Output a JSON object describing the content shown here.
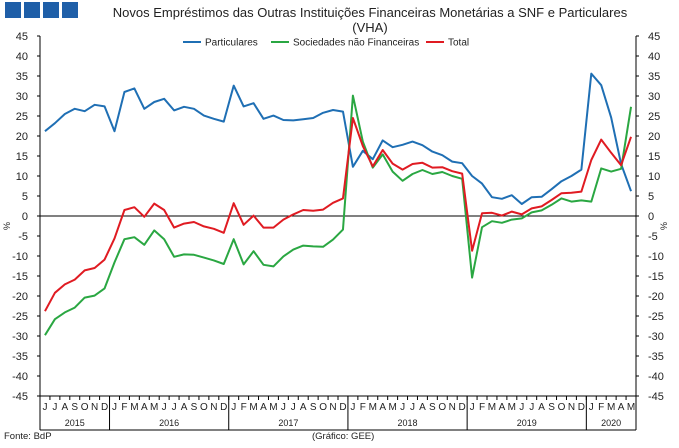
{
  "header": {
    "title": "Novos Empréstimos das Outras Instituições Financeiras Monetárias a SNF e Particulares",
    "subtitle": "(VHA)"
  },
  "footer": {
    "source": "Fonte: BdP",
    "credit": "(Gráfico: GEE)"
  },
  "chart_data": {
    "type": "line",
    "title": "Novos Empréstimos das Outras Instituições Financeiras Monetárias a SNF e Particulares",
    "subtitle": "(VHA)",
    "ylabel": "%",
    "ylabel_right": "%",
    "ylim": [
      -45,
      45
    ],
    "yticks": [
      -45,
      -40,
      -35,
      -30,
      -25,
      -20,
      -15,
      -10,
      -5,
      0,
      5,
      10,
      15,
      20,
      25,
      30,
      35,
      40,
      45
    ],
    "grid": false,
    "legend_position": "top",
    "month_labels": [
      "J",
      "J",
      "A",
      "S",
      "O",
      "N",
      "D",
      "J",
      "F",
      "M",
      "A",
      "M",
      "J",
      "J",
      "A",
      "S",
      "O",
      "N",
      "D",
      "J",
      "F",
      "M",
      "A",
      "M",
      "J",
      "J",
      "A",
      "S",
      "O",
      "N",
      "D",
      "J",
      "F",
      "M",
      "A",
      "M",
      "J",
      "J",
      "A",
      "S",
      "O",
      "N",
      "D",
      "J",
      "F",
      "M",
      "A",
      "M",
      "J",
      "J",
      "A",
      "S",
      "O",
      "N",
      "D",
      "J",
      "F",
      "M",
      "A",
      "M"
    ],
    "year_groups": [
      {
        "label": "2015",
        "start": 0,
        "count": 7
      },
      {
        "label": "2016",
        "start": 7,
        "count": 12
      },
      {
        "label": "2017",
        "start": 19,
        "count": 12
      },
      {
        "label": "2018",
        "start": 31,
        "count": 12
      },
      {
        "label": "2019",
        "start": 43,
        "count": 12
      },
      {
        "label": "2020",
        "start": 55,
        "count": 5
      }
    ],
    "series": [
      {
        "name": "Particulares",
        "color": "#1f6fb4",
        "values": [
          21.2,
          23.2,
          25.5,
          26.8,
          26.2,
          27.8,
          27.4,
          21.2,
          31.0,
          31.9,
          26.8,
          28.5,
          29.3,
          26.4,
          27.3,
          26.8,
          25.1,
          24.3,
          23.6,
          32.6,
          27.4,
          28.2,
          24.3,
          25.1,
          24.0,
          23.9,
          24.2,
          24.5,
          25.8,
          26.5,
          26.1,
          12.3,
          16.3,
          14.2,
          18.9,
          17.2,
          17.8,
          18.6,
          17.7,
          16.1,
          15.2,
          13.6,
          13.2,
          10.0,
          8.1,
          4.7,
          4.3,
          5.2,
          3.0,
          4.7,
          4.8,
          6.7,
          8.7,
          10.0,
          11.6,
          35.6,
          32.7,
          24.6,
          13.0,
          6.2
        ]
      },
      {
        "name": "Sociedades não Financeiras",
        "color": "#2aa742",
        "values": [
          -29.8,
          -25.8,
          -24.1,
          -22.9,
          -20.4,
          -19.9,
          -18.1,
          -11.6,
          -5.8,
          -5.3,
          -7.2,
          -3.6,
          -5.8,
          -10.2,
          -9.6,
          -9.7,
          -10.4,
          -11.1,
          -12.0,
          -5.8,
          -12.1,
          -8.8,
          -12.2,
          -12.6,
          -10.1,
          -8.4,
          -7.4,
          -7.6,
          -7.7,
          -5.9,
          -3.4,
          30.1,
          18.6,
          12.1,
          15.4,
          11.1,
          8.8,
          10.5,
          11.5,
          10.5,
          11.0,
          10.0,
          9.3,
          -15.4,
          -2.8,
          -1.3,
          -1.7,
          -0.9,
          -0.6,
          0.9,
          1.4,
          2.8,
          4.4,
          3.6,
          3.9,
          3.6,
          11.9,
          11.1,
          11.8,
          27.3
        ]
      },
      {
        "name": "Total",
        "color": "#e01b22",
        "values": [
          -23.8,
          -19.2,
          -17.1,
          -15.9,
          -13.6,
          -13.0,
          -10.9,
          -5.6,
          1.5,
          2.2,
          -0.2,
          3.1,
          1.5,
          -2.9,
          -1.9,
          -1.5,
          -2.6,
          -3.2,
          -4.2,
          3.2,
          -2.2,
          0.1,
          -2.9,
          -2.9,
          -0.9,
          0.4,
          1.5,
          1.3,
          1.6,
          3.3,
          4.4,
          24.5,
          17.5,
          12.4,
          16.5,
          13.1,
          11.6,
          13.0,
          13.3,
          12.1,
          12.2,
          11.2,
          10.6,
          -8.7,
          0.7,
          0.8,
          0.1,
          1.1,
          0.4,
          1.9,
          2.4,
          4.0,
          5.7,
          5.8,
          6.1,
          14.0,
          19.1,
          15.8,
          12.7,
          19.8
        ]
      }
    ]
  }
}
